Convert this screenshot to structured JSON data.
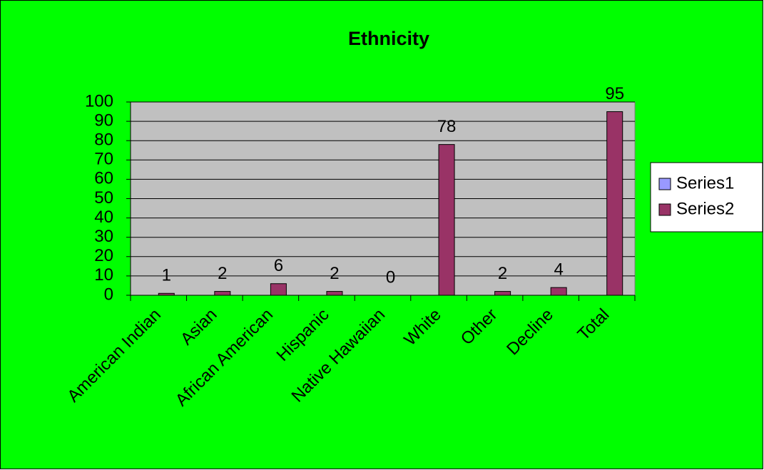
{
  "chart_data": {
    "type": "bar",
    "title": "Ethnicity",
    "categories": [
      "American Indian",
      "Asian",
      "African American",
      "Hispanic",
      "Native Hawaiian",
      "White",
      "Other",
      "Decline",
      "Total"
    ],
    "series": [
      {
        "name": "Series1",
        "color": "#9999ff",
        "values": [
          null,
          null,
          null,
          null,
          null,
          null,
          null,
          null,
          null
        ]
      },
      {
        "name": "Series2",
        "color": "#993366",
        "values": [
          1,
          2,
          6,
          2,
          0,
          78,
          2,
          4,
          95
        ]
      }
    ],
    "ylim": [
      0,
      100
    ],
    "yticks": [
      0,
      10,
      20,
      30,
      40,
      50,
      60,
      70,
      80,
      90,
      100
    ],
    "grid": true,
    "background": "#00ff00",
    "plot_background": "#c0c0c0",
    "legend": "right"
  }
}
